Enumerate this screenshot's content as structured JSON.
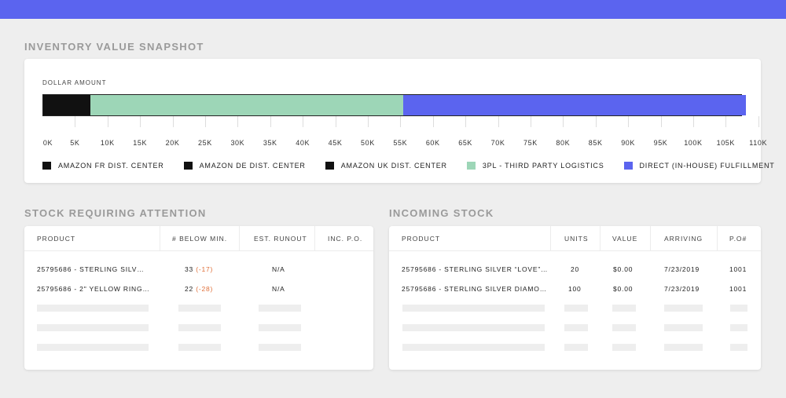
{
  "inventory": {
    "title": "INVENTORY VALUE SNAPSHOT",
    "axis_label": "DOLLAR AMOUNT",
    "ticks": [
      "0K",
      "5K",
      "10K",
      "15K",
      "20K",
      "25K",
      "30K",
      "35K",
      "40K",
      "45K",
      "50K",
      "55K",
      "60K",
      "65K",
      "70K",
      "75K",
      "80K",
      "85K",
      "90K",
      "95K",
      "100K",
      "105K",
      "110K"
    ],
    "legend": [
      {
        "label": "AMAZON FR DIST. CENTER",
        "color": "#111111"
      },
      {
        "label": "AMAZON DE DIST. CENTER",
        "color": "#111111"
      },
      {
        "label": "AMAZON UK DIST. CENTER",
        "color": "#111111"
      },
      {
        "label": "3PL - THIRD PARTY LOGISTICS",
        "color": "#9dd6b7"
      },
      {
        "label": "DIRECT (IN-HOUSE) FULFILLMENT",
        "color": "#5b64ef"
      }
    ]
  },
  "chart_data": {
    "type": "bar",
    "orientation": "horizontal-stacked",
    "xlabel": "DOLLAR AMOUNT",
    "xlim": [
      0,
      110000
    ],
    "series": [
      {
        "name": "AMAZON FR DIST. CENTER",
        "values": [
          0
        ]
      },
      {
        "name": "AMAZON DE DIST. CENTER",
        "values": [
          0
        ]
      },
      {
        "name": "AMAZON UK DIST. CENTER",
        "values": [
          7200
        ]
      },
      {
        "name": "3PL - THIRD PARTY LOGISTICS",
        "values": [
          48100
        ]
      },
      {
        "name": "DIRECT (IN-HOUSE) FULFILLMENT",
        "values": [
          52700
        ]
      }
    ]
  },
  "attention": {
    "title": "STOCK REQUIRING ATTENTION",
    "headers": [
      "PRODUCT",
      "# BELOW MIN.",
      "EST. RUNOUT",
      "INC. P.O."
    ],
    "rows": [
      {
        "product": "25795686 - STERLING SILV…",
        "below": "33",
        "delta": "(-17)",
        "runout": "N/A",
        "po": ""
      },
      {
        "product": "25795686 - 2\" YELLOW RING…",
        "below": "22",
        "delta": "(-28)",
        "runout": "N/A",
        "po": ""
      }
    ]
  },
  "incoming": {
    "title": "INCOMING STOCK",
    "headers": [
      "PRODUCT",
      "UNITS",
      "VALUE",
      "ARRIVING",
      "P.O#"
    ],
    "rows": [
      {
        "product": "25795686 - STERLING SILVER “LOVE”…",
        "units": "20",
        "value": "$0.00",
        "arriving": "7/23/2019",
        "po": "1001"
      },
      {
        "product": "25795686 - STERLING SILVER DIAMO…",
        "units": "100",
        "value": "$0.00",
        "arriving": "7/23/2019",
        "po": "1001"
      }
    ]
  },
  "colors": {
    "accent": "#5b64ef",
    "mint": "#9dd6b7",
    "negative": "#e0703a"
  }
}
